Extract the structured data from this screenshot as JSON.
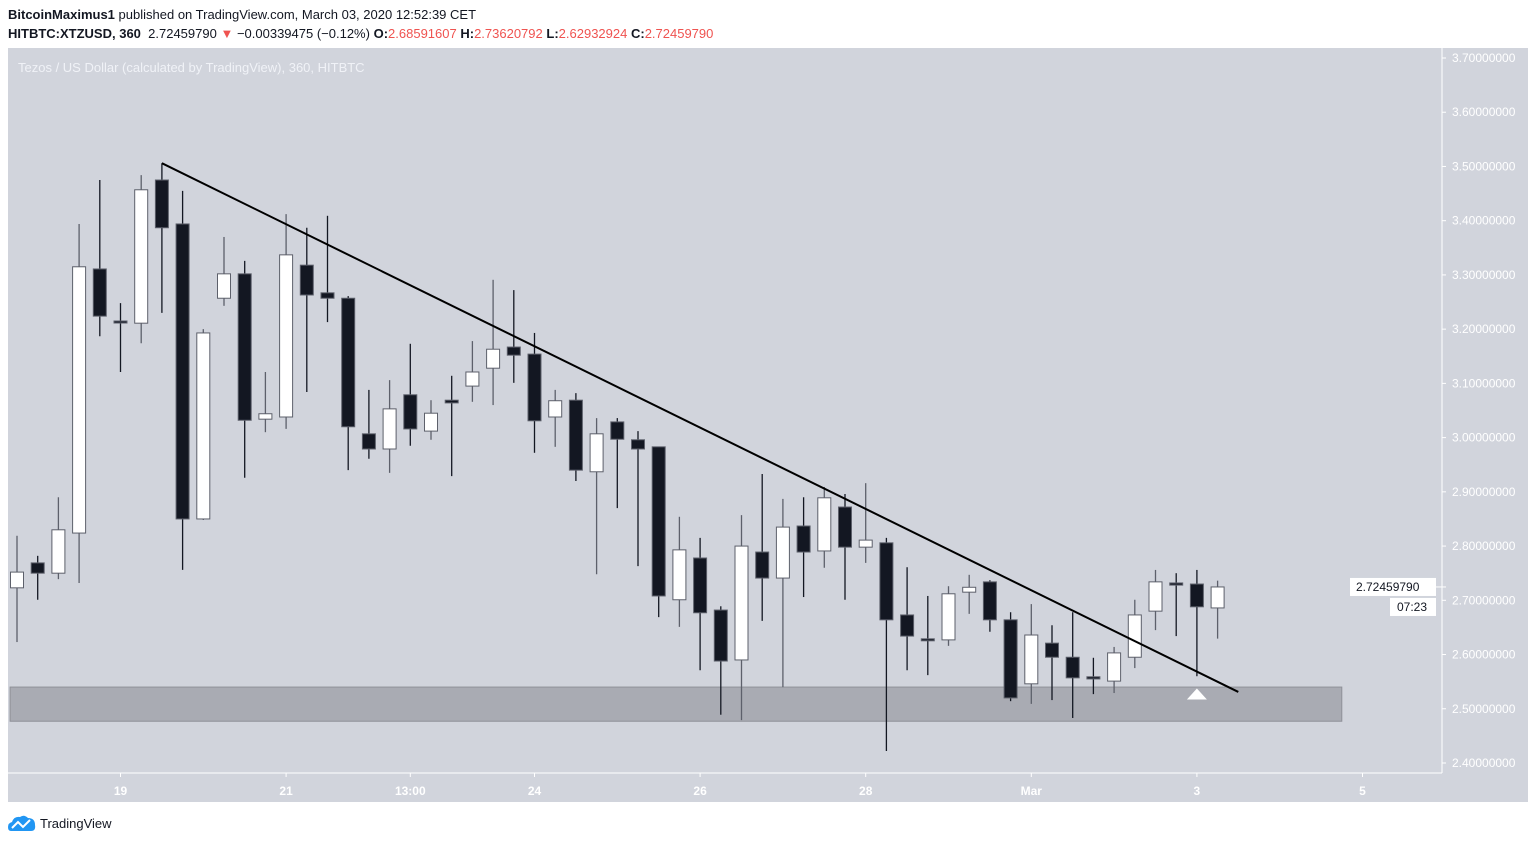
{
  "header": {
    "author": "BitcoinMaximus1",
    "published": "published on TradingView.com, March 03, 2020 12:52:39 CET",
    "symbol": "HITBTC:XTZUSD, 360",
    "last": "2.72459790",
    "change": "−0.00339475 (−0.12%)",
    "o_label": "O:",
    "o": "2.68591607",
    "h_label": "H:",
    "h": "2.73620792",
    "l_label": "L:",
    "l": "2.62932924",
    "c_label": "C:",
    "c": "2.72459790",
    "direction_icon": "triangle-down-icon"
  },
  "subtitle": "Tezos / US Dollar (calculated by TradingView), 360, HITBTC",
  "footer": {
    "brand": "TradingView",
    "logo_icon": "tradingview-cloud-icon"
  },
  "colors": {
    "background": "#d1d4dc",
    "up": "#ffffff",
    "down": "#131722",
    "trendline": "#000000",
    "zone": "#a9abb3",
    "change_red": "#ef5350"
  },
  "chart_data": {
    "type": "candlestick",
    "interval_minutes": 360,
    "ylim": [
      2.4,
      3.7
    ],
    "grid": false,
    "y_ticks": [
      "3.70000000",
      "3.60000000",
      "3.50000000",
      "3.40000000",
      "3.30000000",
      "3.20000000",
      "3.10000000",
      "3.00000000",
      "2.90000000",
      "2.80000000",
      "2.70000000",
      "2.60000000",
      "2.50000000",
      "2.40000000"
    ],
    "x_ticks": [
      {
        "label": "19",
        "time": "2020-02-19 01:00"
      },
      {
        "label": "21",
        "time": "2020-02-21 01:00"
      },
      {
        "label": "13:00",
        "time": "2020-02-22 13:00"
      },
      {
        "label": "24",
        "time": "2020-02-24 01:00"
      },
      {
        "label": "26",
        "time": "2020-02-26 01:00"
      },
      {
        "label": "28",
        "time": "2020-02-28 01:00"
      },
      {
        "label": "Mar",
        "time": "2020-03-01 01:00"
      },
      {
        "label": "3",
        "time": "2020-03-03 01:00"
      },
      {
        "label": "5",
        "time": "2020-03-05 01:00"
      }
    ],
    "first_candle_time": "2020-02-17 19:00",
    "candles": [
      [
        2.723,
        2.819,
        2.623,
        2.752
      ],
      [
        2.769,
        2.782,
        2.701,
        2.75
      ],
      [
        2.75,
        2.89,
        2.739,
        2.83
      ],
      [
        2.824,
        3.394,
        2.732,
        3.315
      ],
      [
        3.311,
        3.475,
        3.187,
        3.224
      ],
      [
        3.215,
        3.248,
        3.121,
        3.213
      ],
      [
        3.211,
        3.484,
        3.174,
        3.457
      ],
      [
        3.475,
        3.506,
        3.23,
        3.387
      ],
      [
        3.394,
        3.455,
        2.756,
        2.85
      ],
      [
        2.85,
        3.2,
        2.848,
        3.193
      ],
      [
        3.257,
        3.37,
        3.243,
        3.302
      ],
      [
        3.302,
        3.326,
        2.926,
        3.032
      ],
      [
        3.034,
        3.121,
        3.01,
        3.044
      ],
      [
        3.038,
        3.412,
        3.016,
        3.337
      ],
      [
        3.318,
        3.387,
        3.084,
        3.263
      ],
      [
        3.267,
        3.409,
        3.213,
        3.257
      ],
      [
        3.257,
        3.261,
        2.94,
        3.02
      ],
      [
        3.007,
        3.088,
        2.961,
        2.979
      ],
      [
        2.979,
        3.106,
        2.935,
        3.053
      ],
      [
        3.079,
        3.173,
        2.985,
        3.016
      ],
      [
        3.012,
        3.069,
        2.996,
        3.045
      ],
      [
        3.069,
        3.114,
        2.929,
        3.064
      ],
      [
        3.095,
        3.178,
        3.066,
        3.121
      ],
      [
        3.128,
        3.291,
        3.06,
        3.163
      ],
      [
        3.167,
        3.272,
        3.101,
        3.152
      ],
      [
        3.154,
        3.193,
        2.972,
        3.031
      ],
      [
        3.038,
        3.088,
        2.983,
        3.068
      ],
      [
        3.069,
        3.082,
        2.92,
        2.94
      ],
      [
        2.937,
        3.036,
        2.748,
        3.007
      ],
      [
        3.029,
        3.036,
        2.87,
        2.997
      ],
      [
        2.996,
        3.012,
        2.763,
        2.979
      ],
      [
        2.983,
        2.983,
        2.669,
        2.708
      ],
      [
        2.701,
        2.854,
        2.651,
        2.793
      ],
      [
        2.778,
        2.815,
        2.571,
        2.677
      ],
      [
        2.682,
        2.689,
        2.489,
        2.588
      ],
      [
        2.59,
        2.857,
        2.479,
        2.8
      ],
      [
        2.789,
        2.933,
        2.662,
        2.741
      ],
      [
        2.741,
        2.887,
        2.54,
        2.835
      ],
      [
        2.837,
        2.89,
        2.706,
        2.789
      ],
      [
        2.791,
        2.909,
        2.76,
        2.889
      ],
      [
        2.872,
        2.896,
        2.701,
        2.798
      ],
      [
        2.798,
        2.916,
        2.769,
        2.811
      ],
      [
        2.806,
        2.815,
        2.422,
        2.664
      ],
      [
        2.673,
        2.761,
        2.571,
        2.634
      ],
      [
        2.629,
        2.708,
        2.562,
        2.627
      ],
      [
        2.627,
        2.726,
        2.616,
        2.712
      ],
      [
        2.715,
        2.747,
        2.675,
        2.724
      ],
      [
        2.734,
        2.737,
        2.642,
        2.664
      ],
      [
        2.664,
        2.678,
        2.514,
        2.52
      ],
      [
        2.546,
        2.693,
        2.509,
        2.636
      ],
      [
        2.621,
        2.654,
        2.516,
        2.595
      ],
      [
        2.595,
        2.678,
        2.483,
        2.557
      ],
      [
        2.559,
        2.594,
        2.527,
        2.555
      ],
      [
        2.551,
        2.614,
        2.529,
        2.603
      ],
      [
        2.595,
        2.701,
        2.575,
        2.673
      ],
      [
        2.68,
        2.756,
        2.645,
        2.734
      ],
      [
        2.732,
        2.75,
        2.634,
        2.728
      ],
      [
        2.73,
        2.756,
        2.56,
        2.688
      ],
      [
        2.68591607,
        2.73620792,
        2.62932924,
        2.7245979
      ]
    ],
    "trendline": {
      "from": {
        "time": "2020-02-19 13:00",
        "price": 3.506
      },
      "to": {
        "time": "2020-03-03 13:00",
        "price": 2.531
      }
    },
    "support_zone": {
      "from_time": "2020-02-17 17:00",
      "to_time": "2020-03-04 19:00",
      "low": 2.477,
      "high": 2.54
    },
    "marker": {
      "type": "triangle-up",
      "time": "2020-03-03 01:00",
      "price": 2.53
    },
    "last_price_label": "2.72459790",
    "countdown": "07:23"
  }
}
